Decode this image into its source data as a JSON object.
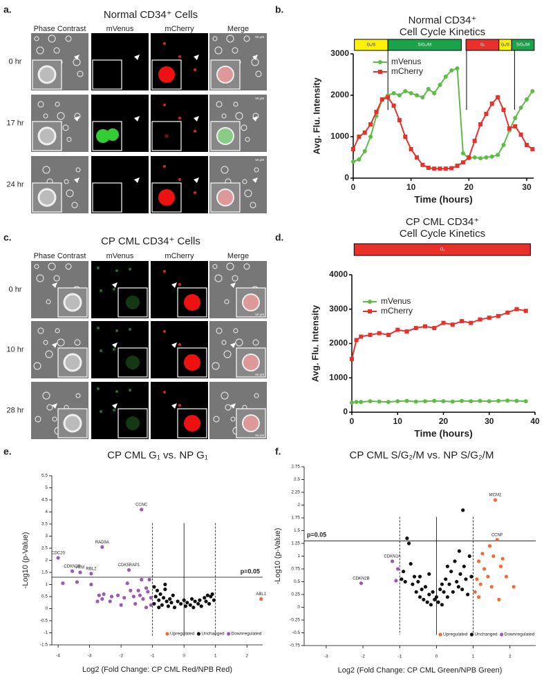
{
  "image_panels": [
    {
      "panel_label": "a.",
      "title": "Normal CD34⁺ Cells",
      "columns": [
        "Phase Contrast",
        "mVenus",
        "mCherry",
        "Merge"
      ],
      "rows": [
        "0 hr",
        "17 hr",
        "24 hr"
      ],
      "scale_bar": "50 μM"
    },
    {
      "panel_label": "c.",
      "title": "CP CML CD34⁺ Cells",
      "columns": [
        "Phase Contrast",
        "mVenus",
        "mCherry",
        "Merge"
      ],
      "rows": [
        "0 hr",
        "10 hr",
        "28 hr"
      ],
      "scale_bar": "50 μM"
    }
  ],
  "chart_data": [
    {
      "type": "line",
      "panel_label": "b.",
      "title": [
        "Normal CD34⁺",
        "Cell Cycle Kinetics"
      ],
      "x_label": "Time (hours)",
      "y_label": "Avg. Flu. Intensity",
      "x": [
        0,
        1,
        2,
        3,
        4,
        5,
        6,
        7,
        8,
        9,
        10,
        11,
        12,
        13,
        14,
        15,
        16,
        17,
        18,
        19,
        20,
        21,
        22,
        23,
        24,
        25,
        26,
        27,
        28,
        29,
        30,
        31
      ],
      "series": [
        {
          "name": "mVenus",
          "color": "#5dbb46",
          "marker": "circle",
          "values": [
            400,
            450,
            650,
            1000,
            1500,
            1900,
            2000,
            2050,
            2000,
            2100,
            2050,
            2000,
            1950,
            2150,
            2050,
            2250,
            2450,
            2600,
            2650,
            600,
            480,
            500,
            480,
            500,
            520,
            560,
            800,
            1150,
            1450,
            1700,
            1900,
            2100
          ]
        },
        {
          "name": "mCherry",
          "color": "#e8312a",
          "marker": "square",
          "values": [
            700,
            1000,
            1100,
            1300,
            1600,
            1900,
            1950,
            1750,
            1400,
            1000,
            700,
            500,
            320,
            250,
            230,
            230,
            230,
            240,
            300,
            380,
            500,
            900,
            1300,
            1550,
            1800,
            1950,
            1650,
            1200,
            1250,
            1050,
            800,
            700
          ]
        }
      ],
      "phases": [
        {
          "label": "G₁/S",
          "start": 0.2,
          "end": 6,
          "color": "#fff200"
        },
        {
          "label": "S/G₂/M",
          "start": 6,
          "end": 18.7,
          "color": "#1aa34a"
        },
        {
          "label": "G₁",
          "start": 19.5,
          "end": 25.2,
          "color": "#e8312a"
        },
        {
          "label": "G₁/S",
          "start": 25.2,
          "end": 27.4,
          "color": "#fff200"
        },
        {
          "label": "S/G₂/M",
          "start": 27.4,
          "end": 31.3,
          "color": "#1aa34a"
        }
      ],
      "phase_lines": [
        6,
        19.6,
        27.9
      ],
      "xlim": [
        0,
        31.2
      ],
      "xticks": [
        0,
        10,
        20,
        30
      ],
      "ylim": [
        0,
        3000
      ],
      "yticks": [
        0,
        1000,
        2000,
        3000
      ],
      "legend": "upper left"
    },
    {
      "type": "line",
      "panel_label": "d.",
      "title": [
        "CP CML CD34⁺",
        "Cell Cycle Kinetics"
      ],
      "x_label": "Time (hours)",
      "y_label": "Avg. Flu. Intensity",
      "x": [
        0,
        1,
        2,
        4,
        6,
        8,
        10,
        12,
        14,
        16,
        18,
        20,
        22,
        24,
        26,
        28,
        30,
        32,
        34,
        36,
        38
      ],
      "series": [
        {
          "name": "mVenus",
          "color": "#5dbb46",
          "marker": "circle",
          "values": [
            280,
            300,
            300,
            320,
            310,
            300,
            320,
            330,
            310,
            320,
            330,
            320,
            310,
            330,
            320,
            330,
            320,
            330,
            340,
            330,
            320
          ]
        },
        {
          "name": "mCherry",
          "color": "#e8312a",
          "marker": "square",
          "values": [
            1550,
            2100,
            2200,
            2250,
            2300,
            2250,
            2400,
            2350,
            2450,
            2500,
            2450,
            2600,
            2550,
            2650,
            2600,
            2700,
            2750,
            2800,
            2900,
            3000,
            2950
          ]
        }
      ],
      "phases": [
        {
          "label": "G₁",
          "start": 0.5,
          "end": 39,
          "color": "#e8312a"
        }
      ],
      "phase_lines": [],
      "xlim": [
        0,
        40
      ],
      "xticks": [
        0,
        10,
        20,
        30,
        40
      ],
      "ylim": [
        0,
        4000
      ],
      "yticks": [
        0,
        1000,
        2000,
        3000,
        4000
      ],
      "legend": "upper left"
    },
    {
      "type": "scatter",
      "panel_label": "e.",
      "title": "CP CML G₁ vs. NP G₁",
      "x_label": "Log2 (Fold Change: CP CML Red/NPB Red)",
      "y_label": "-Log10 (p-Value)",
      "series": [
        {
          "name": "Upregulated",
          "color": "#f26b36",
          "x": [
            2.45
          ],
          "values": [
            0.4
          ],
          "point_labels": [
            "ABL1"
          ]
        },
        {
          "name": "Unchanged",
          "color": "#111111",
          "x": [
            -0.95,
            -0.9,
            -0.85,
            -0.8,
            -0.75,
            -0.7,
            -0.65,
            -0.6,
            -0.55,
            -0.5,
            -0.45,
            -0.4,
            -0.35,
            -0.3,
            -0.2,
            -0.1,
            0,
            0.05,
            0.1,
            0.2,
            0.25,
            0.3,
            0.35,
            0.45,
            0.5,
            0.55,
            0.65,
            0.7,
            0.75,
            0.8,
            0.85,
            0.9,
            0.95,
            -0.95,
            -0.6,
            -0.8
          ],
          "values": [
            0.2,
            0.5,
            0.75,
            0.35,
            0.6,
            0.15,
            0.45,
            0.8,
            0.3,
            0.1,
            0.4,
            0.25,
            0.55,
            0.05,
            0.3,
            0.2,
            0.35,
            0.1,
            0.25,
            0.15,
            0.4,
            0.05,
            0.3,
            0.2,
            0.35,
            0.1,
            0.45,
            0.3,
            0.55,
            0.2,
            0.5,
            0.6,
            0.35,
            0.9,
            1.0,
            0.05
          ]
        },
        {
          "name": "Downregulated",
          "color": "#9b59b6",
          "x": [
            -4.0,
            -3.55,
            -3.3,
            -2.95,
            -2.6,
            -1.75,
            -1.35,
            -3.85,
            -3.4,
            -2.95,
            -2.7,
            -2.6,
            -2.55,
            -2.35,
            -2.3,
            -2.1,
            -2.0,
            -1.9,
            -1.8,
            -1.7,
            -1.6,
            -1.55,
            -1.45,
            -1.4,
            -1.35,
            -1.3,
            -1.2,
            -1.15,
            -1.1,
            -1.05,
            -1.05,
            -1.2,
            -2.75
          ],
          "values": [
            2.1,
            1.55,
            1.5,
            1.45,
            2.55,
            1.6,
            4.1,
            1.05,
            1.1,
            1.0,
            0.55,
            0.4,
            0.6,
            0.3,
            0.5,
            0.55,
            0.15,
            0.45,
            1.05,
            0.75,
            0.5,
            0.2,
            0.75,
            0.55,
            1.2,
            0.4,
            0.85,
            0.7,
            1.2,
            0.45,
            0.15,
            0.05,
            0.3
          ],
          "point_labels": [
            "CDC20",
            "CDKN2B",
            "ATM",
            "RBL2",
            "RAD9A",
            "CDK5RAP1",
            "CCNC",
            null,
            null,
            null,
            null,
            null,
            null,
            null,
            null,
            null,
            null,
            null,
            null,
            null,
            null,
            null,
            null,
            null,
            null,
            null,
            null,
            null,
            null,
            null,
            null,
            null,
            null
          ]
        }
      ],
      "hline": 1.3,
      "hline_label": "p=0.05",
      "hline_label_position": "right",
      "vline": 0,
      "vlines_dashed": [
        -1,
        1
      ],
      "xlim": [
        -4.2,
        2.5
      ],
      "xticks": [
        -4,
        -3,
        -2,
        -1,
        0,
        1,
        2
      ],
      "ylim": [
        -1.5,
        5.5
      ],
      "yticks": [
        -1.5,
        -1,
        -0.5,
        0,
        0.5,
        1,
        1.5,
        2,
        2.5,
        3,
        3.5,
        4,
        4.5,
        5,
        5.5
      ],
      "legend": "lower right"
    },
    {
      "type": "scatter",
      "panel_label": "f.",
      "title": "CP CML S/G₂/M vs. NP S/G₂/M",
      "x_label": "Log2 (Fold Change: CP CML Green/NPB Green)",
      "y_label": "-Log10 (p-Value)",
      "series": [
        {
          "name": "Upregulated",
          "color": "#f26b36",
          "x": [
            1.6,
            1.65,
            1.05,
            1.1,
            1.15,
            1.2,
            1.25,
            1.3,
            1.4,
            1.45,
            1.5,
            1.55,
            1.7,
            1.75,
            1.8,
            1.9,
            2.1,
            1.15
          ],
          "values": [
            2.1,
            1.32,
            0.3,
            0.55,
            0.9,
            0.45,
            1.05,
            0.75,
            0.6,
            1.2,
            0.4,
            1.0,
            0.15,
            0.8,
            0.95,
            0.6,
            0.4,
            0.2
          ],
          "point_labels": [
            "MCM2",
            "CCNF",
            null,
            null,
            null,
            null,
            null,
            null,
            null,
            null,
            null,
            null,
            null,
            null,
            null,
            null,
            null,
            null
          ]
        },
        {
          "name": "Unchanged",
          "color": "#111111",
          "x": [
            -0.95,
            -0.9,
            -0.85,
            -0.8,
            -0.75,
            -0.7,
            -0.65,
            -0.6,
            -0.55,
            -0.5,
            -0.45,
            -0.4,
            -0.35,
            -0.3,
            -0.25,
            -0.2,
            -0.15,
            -0.1,
            -0.05,
            0,
            0.05,
            0.1,
            0.15,
            0.2,
            0.25,
            0.3,
            0.35,
            0.4,
            0.45,
            0.5,
            0.55,
            0.6,
            0.62,
            0.65,
            0.7,
            0.72,
            0.75,
            0.8,
            0.85,
            0.9,
            0.95,
            -0.45,
            0.3,
            0.15,
            -0.2
          ],
          "values": [
            0.55,
            0.7,
            0.5,
            1.35,
            1.25,
            0.85,
            0.45,
            0.6,
            0.3,
            0.5,
            0.2,
            0.35,
            0.15,
            0.4,
            0.1,
            0.25,
            0.05,
            0.3,
            0.15,
            0.2,
            0.1,
            0.35,
            0.05,
            0.3,
            0.55,
            0.2,
            0.45,
            0.7,
            0.3,
            0.9,
            0.5,
            0.4,
            1.1,
            0.65,
            0.35,
            1.9,
            0.8,
            0.55,
            0.25,
            1.0,
            0.6,
            0.6,
            0.8,
            0.45,
            0.65
          ]
        },
        {
          "name": "Downregulated",
          "color": "#9b59b6",
          "x": [
            -1.2,
            -2.05,
            -1.05,
            -1.1
          ],
          "values": [
            0.9,
            0.47,
            0.75,
            0.52
          ],
          "point_labels": [
            "CDKN1A",
            "CDKN2B",
            null,
            null
          ]
        }
      ],
      "hline": 1.3,
      "hline_label": "p=0.05",
      "hline_label_position": "left",
      "vline": 0,
      "vlines_dashed": [
        -1,
        1
      ],
      "xlim": [
        -3.6,
        2.7
      ],
      "xticks": [
        -3,
        -2,
        -1,
        0,
        1,
        2
      ],
      "ylim": [
        -0.75,
        2.75
      ],
      "yticks": [
        -0.75,
        -0.5,
        -0.25,
        0,
        0.25,
        0.5,
        0.75,
        1,
        1.25,
        1.5,
        1.75,
        2,
        2.25,
        2.5,
        2.75
      ],
      "legend": "lower right"
    }
  ]
}
